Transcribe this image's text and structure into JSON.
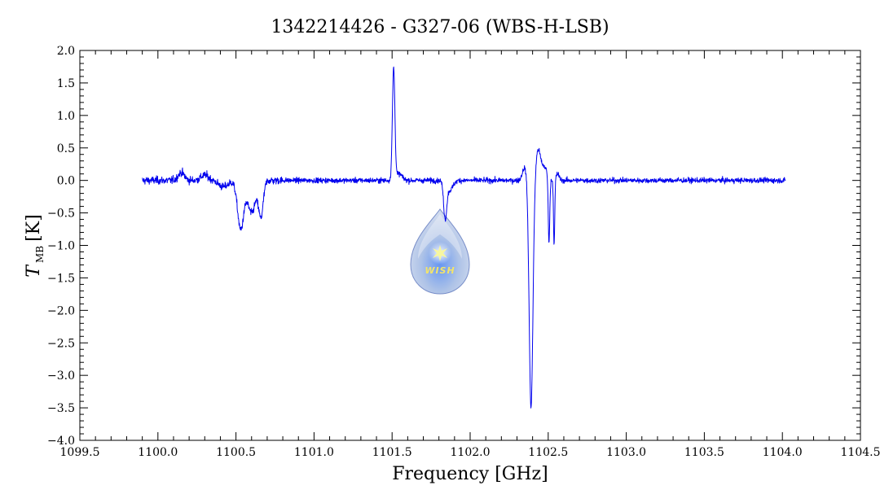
{
  "chart_data": {
    "type": "line",
    "title": "1342214426 - G327-06 (WBS-H-LSB)",
    "xlabel": "Frequency [GHz]",
    "ylabel_main": "T",
    "ylabel_sub": "MB",
    "ylabel_unit": "[K]",
    "xlim": [
      1099.5,
      1104.5
    ],
    "ylim": [
      -4.0,
      2.0
    ],
    "x_ticks": [
      1099.5,
      1100.0,
      1100.5,
      1101.0,
      1101.5,
      1102.0,
      1102.5,
      1103.0,
      1103.5,
      1104.0,
      1104.5
    ],
    "x_tick_labels": [
      "1099.5",
      "1100.0",
      "1100.5",
      "1101.0",
      "1101.5",
      "1102.0",
      "1102.5",
      "1103.0",
      "1103.5",
      "1104.0",
      "1104.5"
    ],
    "y_ticks": [
      2.0,
      1.5,
      1.0,
      0.5,
      0.0,
      -0.5,
      -1.0,
      -1.5,
      -2.0,
      -2.5,
      -3.0,
      -3.5,
      -4.0
    ],
    "y_tick_labels": [
      "2.0",
      "1.5",
      "1.0",
      "0.5",
      "0.0",
      "−0.5",
      "−1.0",
      "−1.5",
      "−2.0",
      "−2.5",
      "−3.0",
      "−3.5",
      "−4.0"
    ],
    "grid": false,
    "series": [
      {
        "color": "#0000ee",
        "x_range": [
          1099.9,
          1104.02
        ],
        "noise_rms": 0.04,
        "features": [
          {
            "center": 1100.15,
            "amplitude": 0.12,
            "width": 0.02
          },
          {
            "center": 1100.3,
            "amplitude": 0.08,
            "width": 0.025
          },
          {
            "center": 1100.42,
            "amplitude": -0.1,
            "width": 0.03
          },
          {
            "center": 1100.53,
            "amplitude": -0.75,
            "width": 0.02
          },
          {
            "center": 1100.6,
            "amplitude": -0.5,
            "width": 0.025
          },
          {
            "center": 1100.66,
            "amplitude": -0.55,
            "width": 0.015
          },
          {
            "center": 1101.51,
            "amplitude": 1.72,
            "width": 0.008
          },
          {
            "center": 1101.545,
            "amplitude": 0.1,
            "width": 0.02
          },
          {
            "center": 1101.84,
            "amplitude": -0.55,
            "width": 0.01
          },
          {
            "center": 1101.87,
            "amplitude": -0.15,
            "width": 0.02
          },
          {
            "center": 1102.35,
            "amplitude": 0.2,
            "width": 0.015
          },
          {
            "center": 1102.39,
            "amplitude": -3.5,
            "width": 0.012
          },
          {
            "center": 1102.435,
            "amplitude": 0.45,
            "width": 0.015
          },
          {
            "center": 1102.475,
            "amplitude": 0.2,
            "width": 0.02
          },
          {
            "center": 1102.505,
            "amplitude": -1.0,
            "width": 0.005
          },
          {
            "center": 1102.538,
            "amplitude": -1.0,
            "width": 0.004
          },
          {
            "center": 1102.56,
            "amplitude": 0.1,
            "width": 0.01
          }
        ]
      }
    ]
  },
  "logo": {
    "text": "WISH",
    "colors": {
      "drop": "#a9bfe6",
      "drop_edge": "#6c84c4",
      "star": "#f7f7a0"
    }
  }
}
